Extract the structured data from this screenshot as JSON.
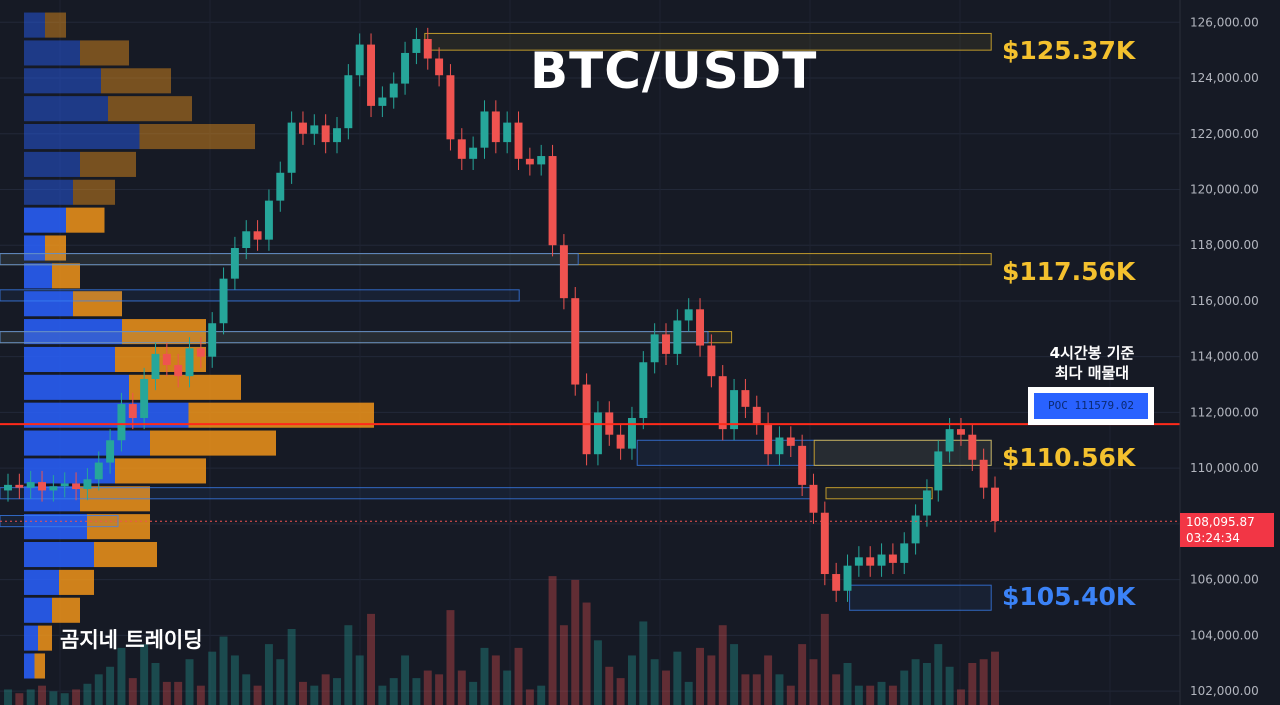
{
  "title": "BTC/USDT",
  "watermark": "곰지네 트레이딩",
  "levels": [
    {
      "label": "$125.37K",
      "value": 125370,
      "color": "yellow"
    },
    {
      "label": "$117.56K",
      "value": 117560,
      "color": "yellow"
    },
    {
      "label": "$110.56K",
      "value": 110560,
      "color": "yellow"
    },
    {
      "label": "$105.40K",
      "value": 105400,
      "color": "blue"
    }
  ],
  "poc": {
    "note_line1": "4시간봉 기준",
    "note_line2": "최다 매물대",
    "label": "POC  111579.02",
    "value": 111579.02
  },
  "current_price": {
    "price": "108,095.87",
    "countdown": "03:24:34",
    "value": 108095.87
  },
  "colors": {
    "background": "#161a25",
    "up": "#26a69a",
    "down": "#ef5350",
    "poc_line": "#ff2a1a",
    "level_yellow": "#f4c12e",
    "level_blue": "#3b82f6",
    "profile_blue": "#2962ff",
    "profile_orange": "#f0941a"
  },
  "chart_data": {
    "type": "candlestick",
    "title": "BTC/USDT",
    "ylim": [
      101500,
      126800
    ],
    "y_ticks": [
      "126,000.00",
      "124,000.00",
      "122,000.00",
      "120,000.00",
      "118,000.00",
      "116,000.00",
      "114,000.00",
      "112,000.00",
      "110,000.00",
      "108,000.00",
      "106,000.00",
      "104,000.00",
      "102,000.00"
    ],
    "y_tick_values": [
      126000,
      124000,
      122000,
      120000,
      118000,
      116000,
      114000,
      112000,
      110000,
      108000,
      106000,
      104000,
      102000
    ],
    "candles": [
      {
        "o": 109200,
        "c": 109400
      },
      {
        "o": 109400,
        "c": 109300
      },
      {
        "o": 109300,
        "c": 109500
      },
      {
        "o": 109500,
        "c": 109200
      },
      {
        "o": 109200,
        "c": 109350
      },
      {
        "o": 109350,
        "c": 109450
      },
      {
        "o": 109450,
        "c": 109250
      },
      {
        "o": 109250,
        "c": 109600
      },
      {
        "o": 109600,
        "c": 110200
      },
      {
        "o": 110200,
        "c": 111000
      },
      {
        "o": 111000,
        "c": 112300
      },
      {
        "o": 112300,
        "c": 111800
      },
      {
        "o": 111800,
        "c": 113200
      },
      {
        "o": 113200,
        "c": 114100
      },
      {
        "o": 114100,
        "c": 113700
      },
      {
        "o": 113700,
        "c": 113300
      },
      {
        "o": 113300,
        "c": 114300
      },
      {
        "o": 114300,
        "c": 114000
      },
      {
        "o": 114000,
        "c": 115200
      },
      {
        "o": 115200,
        "c": 116800
      },
      {
        "o": 116800,
        "c": 117900
      },
      {
        "o": 117900,
        "c": 118500
      },
      {
        "o": 118500,
        "c": 118200
      },
      {
        "o": 118200,
        "c": 119600
      },
      {
        "o": 119600,
        "c": 120600
      },
      {
        "o": 120600,
        "c": 122400
      },
      {
        "o": 122400,
        "c": 122000
      },
      {
        "o": 122000,
        "c": 122300
      },
      {
        "o": 122300,
        "c": 121700
      },
      {
        "o": 121700,
        "c": 122200
      },
      {
        "o": 122200,
        "c": 124100
      },
      {
        "o": 124100,
        "c": 125200
      },
      {
        "o": 125200,
        "c": 123000
      },
      {
        "o": 123000,
        "c": 123300
      },
      {
        "o": 123300,
        "c": 123800
      },
      {
        "o": 123800,
        "c": 124900
      },
      {
        "o": 124900,
        "c": 125400
      },
      {
        "o": 125400,
        "c": 124700
      },
      {
        "o": 124700,
        "c": 124100
      },
      {
        "o": 124100,
        "c": 121800
      },
      {
        "o": 121800,
        "c": 121100
      },
      {
        "o": 121100,
        "c": 121500
      },
      {
        "o": 121500,
        "c": 122800
      },
      {
        "o": 122800,
        "c": 121700
      },
      {
        "o": 121700,
        "c": 122400
      },
      {
        "o": 122400,
        "c": 121100
      },
      {
        "o": 121100,
        "c": 120900
      },
      {
        "o": 120900,
        "c": 121200
      },
      {
        "o": 121200,
        "c": 118000
      },
      {
        "o": 118000,
        "c": 116100
      },
      {
        "o": 116100,
        "c": 113000
      },
      {
        "o": 113000,
        "c": 110500
      },
      {
        "o": 110500,
        "c": 112000
      },
      {
        "o": 112000,
        "c": 111200
      },
      {
        "o": 111200,
        "c": 110700
      },
      {
        "o": 110700,
        "c": 111800
      },
      {
        "o": 111800,
        "c": 113800
      },
      {
        "o": 113800,
        "c": 114800
      },
      {
        "o": 114800,
        "c": 114100
      },
      {
        "o": 114100,
        "c": 115300
      },
      {
        "o": 115300,
        "c": 115700
      },
      {
        "o": 115700,
        "c": 114400
      },
      {
        "o": 114400,
        "c": 113300
      },
      {
        "o": 113300,
        "c": 111400
      },
      {
        "o": 111400,
        "c": 112800
      },
      {
        "o": 112800,
        "c": 112200
      },
      {
        "o": 112200,
        "c": 111600
      },
      {
        "o": 111600,
        "c": 110500
      },
      {
        "o": 110500,
        "c": 111100
      },
      {
        "o": 111100,
        "c": 110800
      },
      {
        "o": 110800,
        "c": 109400
      },
      {
        "o": 109400,
        "c": 108400
      },
      {
        "o": 108400,
        "c": 106200
      },
      {
        "o": 106200,
        "c": 105600
      },
      {
        "o": 105600,
        "c": 106500
      },
      {
        "o": 106500,
        "c": 106800
      },
      {
        "o": 106800,
        "c": 106500
      },
      {
        "o": 106500,
        "c": 106900
      },
      {
        "o": 106900,
        "c": 106600
      },
      {
        "o": 106600,
        "c": 107300
      },
      {
        "o": 107300,
        "c": 108300
      },
      {
        "o": 108300,
        "c": 109200
      },
      {
        "o": 109200,
        "c": 110600
      },
      {
        "o": 110600,
        "c": 111400
      },
      {
        "o": 111400,
        "c": 111200
      },
      {
        "o": 111200,
        "c": 110300
      },
      {
        "o": 110300,
        "c": 109300
      },
      {
        "o": 109300,
        "c": 108100
      }
    ],
    "volume_profile": [
      {
        "price": 125900,
        "buy": 0.06,
        "sell": 0.06
      },
      {
        "price": 124900,
        "buy": 0.16,
        "sell": 0.14
      },
      {
        "price": 123900,
        "buy": 0.22,
        "sell": 0.2
      },
      {
        "price": 122900,
        "buy": 0.24,
        "sell": 0.24
      },
      {
        "price": 121900,
        "buy": 0.33,
        "sell": 0.33
      },
      {
        "price": 120900,
        "buy": 0.16,
        "sell": 0.16
      },
      {
        "price": 119900,
        "buy": 0.14,
        "sell": 0.12
      },
      {
        "price": 118900,
        "buy": 0.12,
        "sell": 0.11
      },
      {
        "price": 117900,
        "buy": 0.06,
        "sell": 0.06
      },
      {
        "price": 116900,
        "buy": 0.08,
        "sell": 0.08
      },
      {
        "price": 115900,
        "buy": 0.14,
        "sell": 0.14
      },
      {
        "price": 114900,
        "buy": 0.28,
        "sell": 0.24
      },
      {
        "price": 113900,
        "buy": 0.26,
        "sell": 0.26
      },
      {
        "price": 112900,
        "buy": 0.3,
        "sell": 0.32
      },
      {
        "price": 111900,
        "buy": 0.47,
        "sell": 0.53
      },
      {
        "price": 110900,
        "buy": 0.36,
        "sell": 0.36
      },
      {
        "price": 109900,
        "buy": 0.26,
        "sell": 0.26
      },
      {
        "price": 108900,
        "buy": 0.16,
        "sell": 0.2
      },
      {
        "price": 107900,
        "buy": 0.18,
        "sell": 0.18
      },
      {
        "price": 106900,
        "buy": 0.2,
        "sell": 0.18
      },
      {
        "price": 105900,
        "buy": 0.1,
        "sell": 0.1
      },
      {
        "price": 104900,
        "buy": 0.08,
        "sell": 0.08
      },
      {
        "price": 103900,
        "buy": 0.04,
        "sell": 0.04
      },
      {
        "price": 102900,
        "buy": 0.03,
        "sell": 0.03
      }
    ],
    "zones": [
      {
        "y1": 125600,
        "y2": 125000,
        "xf1": 0.36,
        "xf2": 0.84,
        "color": "yellow"
      },
      {
        "y1": 117700,
        "y2": 117300,
        "xf1": 0.0,
        "xf2": 0.84,
        "color": "yellow"
      },
      {
        "y1": 117700,
        "y2": 117300,
        "xf1": 0.0,
        "xf2": 0.49,
        "color": "blue"
      },
      {
        "y1": 116400,
        "y2": 116000,
        "xf1": 0.0,
        "xf2": 0.44,
        "color": "blue"
      },
      {
        "y1": 114900,
        "y2": 114500,
        "xf1": 0.0,
        "xf2": 0.62,
        "color": "yellow"
      },
      {
        "y1": 114900,
        "y2": 114500,
        "xf1": 0.0,
        "xf2": 0.6,
        "color": "blue"
      },
      {
        "y1": 111000,
        "y2": 110100,
        "xf1": 0.54,
        "xf2": 0.84,
        "color": "blue"
      },
      {
        "y1": 111000,
        "y2": 110100,
        "xf1": 0.69,
        "xf2": 0.84,
        "color": "yellow"
      },
      {
        "y1": 109300,
        "y2": 108900,
        "xf1": 0.7,
        "xf2": 0.79,
        "color": "yellow"
      },
      {
        "y1": 109300,
        "y2": 108900,
        "xf1": 0.0,
        "xf2": 0.69,
        "color": "blue"
      },
      {
        "y1": 108300,
        "y2": 107900,
        "xf1": 0.0,
        "xf2": 0.1,
        "color": "blue"
      },
      {
        "y1": 105800,
        "y2": 104900,
        "xf1": 0.72,
        "xf2": 0.84,
        "color": "blue"
      }
    ]
  }
}
